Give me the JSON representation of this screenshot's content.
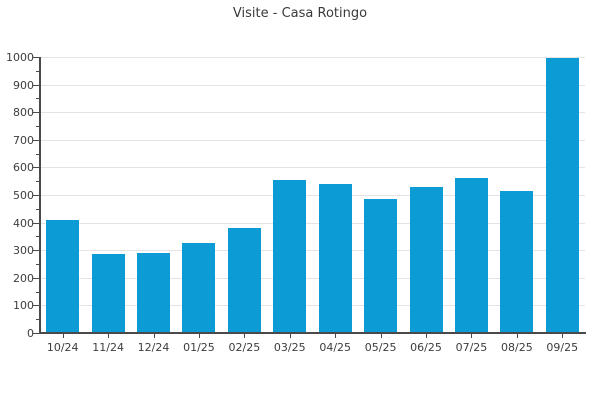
{
  "page": {
    "background_color": "#ffffff"
  },
  "chart_data": {
    "type": "bar",
    "title": "Visite - Casa Rotingo",
    "categories": [
      "10/24",
      "11/24",
      "12/24",
      "01/25",
      "02/25",
      "03/25",
      "04/25",
      "05/25",
      "06/25",
      "07/25",
      "08/25",
      "09/25"
    ],
    "values": [
      410,
      285,
      290,
      325,
      380,
      555,
      540,
      485,
      530,
      560,
      515,
      995
    ],
    "xlabel": "",
    "ylabel": "",
    "ylim": [
      0,
      1000
    ],
    "y_tick_step": 100,
    "y_minor_tick_step": 50,
    "y_tick_labels": [
      "0",
      "100",
      "200",
      "300",
      "400",
      "500",
      "600",
      "700",
      "800",
      "900",
      "1000"
    ],
    "grid": "horizontal-major",
    "legend": "none",
    "colors": {
      "bar": "#0d9bd6",
      "grid": "#e4e4e4",
      "axis": "#4a4a4a",
      "tick_label": "#3d3d3d",
      "title": "#3a3a3a"
    }
  }
}
